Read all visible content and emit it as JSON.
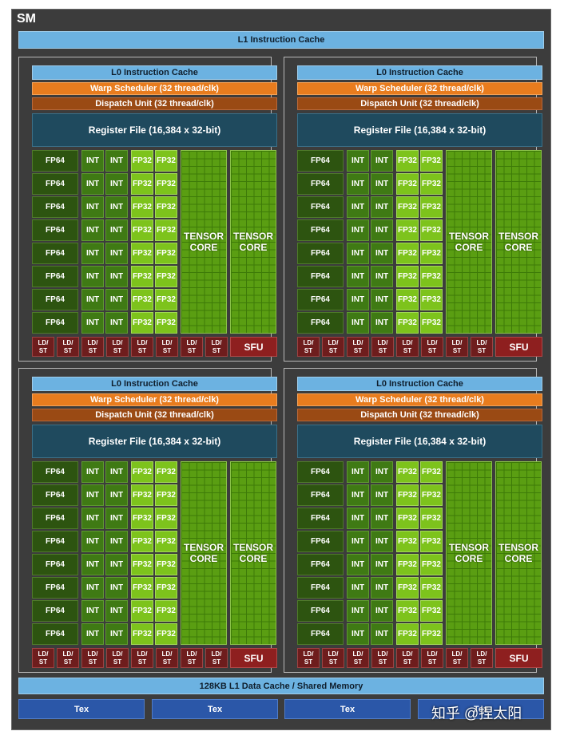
{
  "sm": {
    "title": "SM",
    "l1_instruction_cache": "L1 Instruction Cache",
    "data_cache": "128KB L1 Data Cache / Shared Memory",
    "tex_units": [
      "Tex",
      "Tex",
      "Tex",
      "Tex"
    ],
    "watermark": "知乎 @捏太阳"
  },
  "partition": {
    "l0_cache": "L0 Instruction Cache",
    "warp_scheduler": "Warp Scheduler (32 thread/clk)",
    "dispatch_unit": "Dispatch Unit (32 thread/clk)",
    "register_file": "Register File (16,384 x 32-bit)",
    "fp64": "FP64",
    "int": "INT",
    "fp32": "FP32",
    "tensor_line1": "TENSOR",
    "tensor_line2": "CORE",
    "ldst_line1": "LD/",
    "ldst_line2": "ST",
    "sfu": "SFU",
    "rows": 8,
    "ldst_units": 8
  },
  "colors": {
    "sm_background": "#3c3c3c",
    "cache": "#6cb2e1",
    "warp_scheduler": "#e87c1e",
    "dispatch_unit": "#9a4a14",
    "register_file": "#1f4a5e",
    "fp64": "#2d5410",
    "int": "#3f7a14",
    "fp32": "#7dc31c",
    "tensor": "#5a9e12",
    "ldst": "#6e1d1d",
    "sfu": "#8e1f1f",
    "tex": "#2b57a8"
  }
}
